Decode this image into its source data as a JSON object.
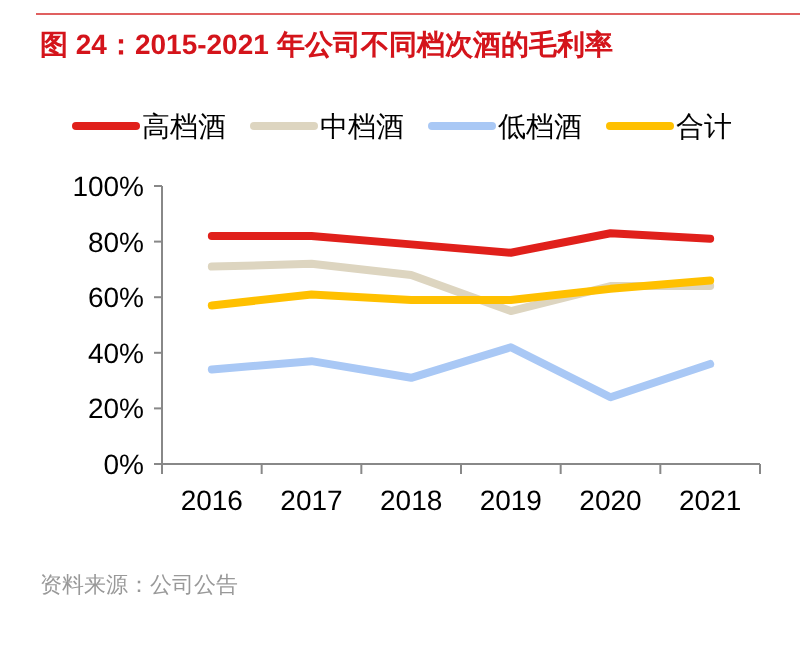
{
  "chart_data": {
    "type": "line",
    "title": "图 24：2015-2021 年公司不同档次酒的毛利率",
    "categories": [
      "2016",
      "2017",
      "2018",
      "2019",
      "2020",
      "2021"
    ],
    "series": [
      {
        "name": "高档酒",
        "color": "#e0201b",
        "values": [
          82,
          82,
          79,
          76,
          83,
          81
        ]
      },
      {
        "name": "中档酒",
        "color": "#ddd5c0",
        "values": [
          71,
          72,
          68,
          55,
          64,
          64
        ]
      },
      {
        "name": "低档酒",
        "color": "#a9c8f5",
        "values": [
          34,
          37,
          31,
          42,
          24,
          36
        ]
      },
      {
        "name": "合计",
        "color": "#ffc000",
        "values": [
          57,
          61,
          59,
          59,
          63,
          66
        ]
      }
    ],
    "ylim": [
      0,
      100
    ],
    "yticks": [
      {
        "value": 0,
        "label": "0%"
      },
      {
        "value": 20,
        "label": "20%"
      },
      {
        "value": 40,
        "label": "40%"
      },
      {
        "value": 60,
        "label": "60%"
      },
      {
        "value": 80,
        "label": "80%"
      },
      {
        "value": 100,
        "label": "100%"
      }
    ],
    "legend": "top",
    "grid": false,
    "marker": "none",
    "line_style": "solid",
    "annotations": [
      "资料来源：公司公告"
    ]
  }
}
